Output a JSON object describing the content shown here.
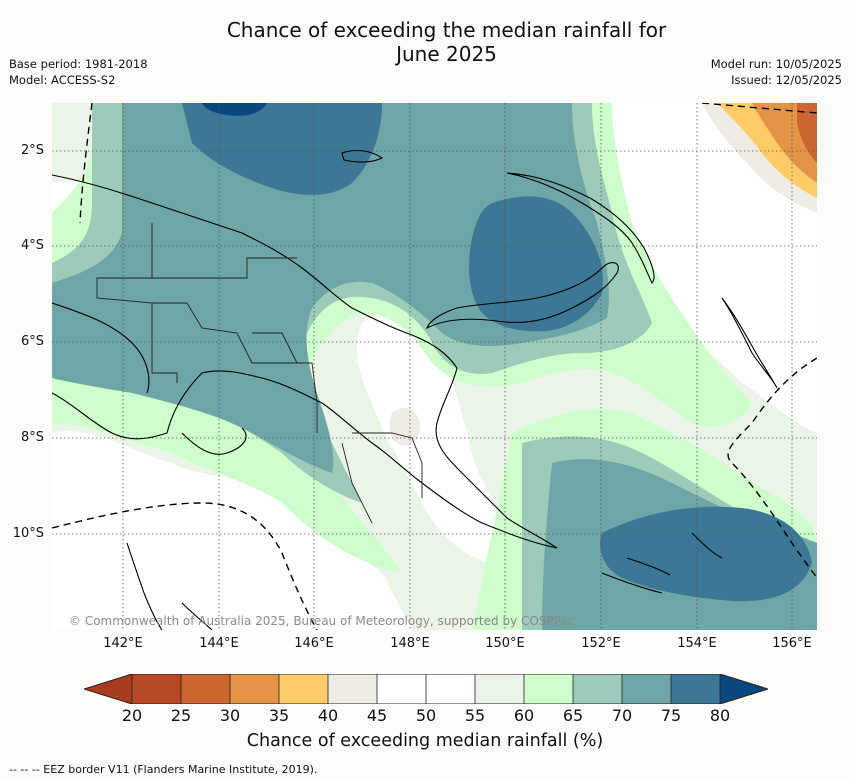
{
  "header": {
    "title_line1": "Chance of exceeding the median rainfall for",
    "title_line2": "June 2025",
    "base_period": "Base period: 1981-2018",
    "model": "Model: ACCESS-S2",
    "model_run": "Model run: 10/05/2025",
    "issued": "Issued: 12/05/2025"
  },
  "map": {
    "lat_labels": [
      "2°S",
      "4°S",
      "6°S",
      "8°S",
      "10°S"
    ],
    "lon_labels": [
      "142°E",
      "144°E",
      "146°E",
      "148°E",
      "150°E",
      "152°E",
      "154°E",
      "156°E"
    ],
    "copyright": "© Commonwealth of Australia 2025, Bureau of Meteorology, supported by COSPPac",
    "extent": {
      "lon_min": 140.9,
      "lon_max": 156.4,
      "lat_north": -1.0,
      "lat_south": -11.9
    }
  },
  "colorbar": {
    "title": "Chance of exceeding median rainfall (%)",
    "ticks": [
      "20",
      "25",
      "30",
      "35",
      "40",
      "45",
      "50",
      "55",
      "60",
      "65",
      "70",
      "75",
      "80"
    ],
    "colors": {
      "lt20": "#a93c1c",
      "20_25": "#b74a24",
      "25_30": "#cc6530",
      "30_35": "#e39446",
      "35_40": "#fecb66",
      "40_45": "#efece6",
      "45_50": "#ffffff",
      "50_55": "#ffffff",
      "55_60": "#eaf5e8",
      "60_65": "#cdfecb",
      "65_70": "#9ccbb9",
      "70_75": "#6ea5a6",
      "75_80": "#3d7796",
      "gt80": "#0a4780"
    }
  },
  "footnote": "--  --  -- EEZ border V11 (Flanders Marine Institute, 2019)."
}
